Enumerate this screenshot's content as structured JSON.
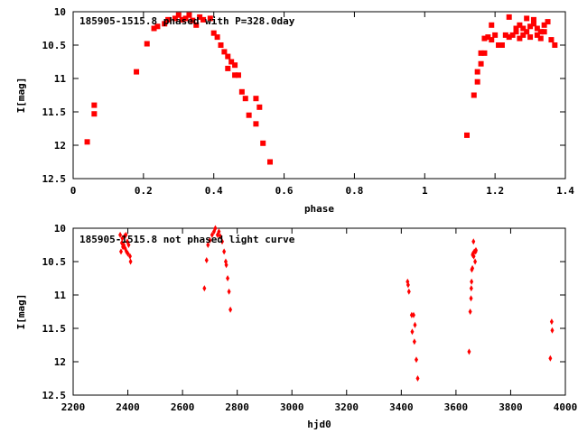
{
  "chart_data": [
    {
      "type": "scatter",
      "title": "185905-1515.8 phased with P=328.0day",
      "xlabel": "phase",
      "ylabel": "I[mag]",
      "xlim": [
        0,
        1.4
      ],
      "ylim": [
        10,
        12.5
      ],
      "y_inverted": true,
      "x_ticks": [
        "0",
        "0.2",
        "0.4",
        "0.6",
        "0.8",
        "1",
        "1.2",
        "1.4"
      ],
      "y_ticks": [
        "10",
        "10.5",
        "11",
        "11.5",
        "12",
        "12.5"
      ],
      "grid": false,
      "marker_color": "#ff0000",
      "series": [
        {
          "points": [
            [
              0.04,
              11.95
            ],
            [
              0.06,
              11.4
            ],
            [
              0.06,
              11.53
            ],
            [
              0.18,
              10.9
            ],
            [
              0.21,
              10.48
            ],
            [
              0.23,
              10.25
            ],
            [
              0.24,
              10.22
            ],
            [
              0.26,
              10.18
            ],
            [
              0.27,
              10.12
            ],
            [
              0.29,
              10.1
            ],
            [
              0.3,
              10.05
            ],
            [
              0.31,
              10.12
            ],
            [
              0.32,
              10.1
            ],
            [
              0.33,
              10.05
            ],
            [
              0.34,
              10.13
            ],
            [
              0.35,
              10.2
            ],
            [
              0.36,
              10.08
            ],
            [
              0.37,
              10.12
            ],
            [
              0.39,
              10.1
            ],
            [
              0.4,
              10.32
            ],
            [
              0.41,
              10.38
            ],
            [
              0.42,
              10.5
            ],
            [
              0.43,
              10.6
            ],
            [
              0.44,
              10.67
            ],
            [
              0.44,
              10.85
            ],
            [
              0.45,
              10.75
            ],
            [
              0.46,
              10.8
            ],
            [
              0.46,
              10.95
            ],
            [
              0.47,
              10.95
            ],
            [
              0.48,
              11.2
            ],
            [
              0.49,
              11.3
            ],
            [
              0.5,
              11.55
            ],
            [
              0.52,
              11.3
            ],
            [
              0.52,
              11.68
            ],
            [
              0.53,
              11.43
            ],
            [
              0.54,
              11.97
            ],
            [
              0.56,
              12.25
            ],
            [
              1.12,
              11.85
            ],
            [
              1.14,
              11.25
            ],
            [
              1.15,
              11.05
            ],
            [
              1.15,
              10.9
            ],
            [
              1.16,
              10.78
            ],
            [
              1.16,
              10.62
            ],
            [
              1.17,
              10.62
            ],
            [
              1.17,
              10.4
            ],
            [
              1.18,
              10.38
            ],
            [
              1.19,
              10.2
            ],
            [
              1.19,
              10.42
            ],
            [
              1.2,
              10.35
            ],
            [
              1.21,
              10.5
            ],
            [
              1.22,
              10.5
            ],
            [
              1.23,
              10.35
            ],
            [
              1.24,
              10.38
            ],
            [
              1.24,
              10.08
            ],
            [
              1.25,
              10.35
            ],
            [
              1.26,
              10.25
            ],
            [
              1.26,
              10.3
            ],
            [
              1.27,
              10.2
            ],
            [
              1.27,
              10.4
            ],
            [
              1.28,
              10.25
            ],
            [
              1.28,
              10.35
            ],
            [
              1.29,
              10.1
            ],
            [
              1.29,
              10.3
            ],
            [
              1.3,
              10.22
            ],
            [
              1.3,
              10.38
            ],
            [
              1.31,
              10.12
            ],
            [
              1.31,
              10.18
            ],
            [
              1.32,
              10.25
            ],
            [
              1.32,
              10.35
            ],
            [
              1.33,
              10.3
            ],
            [
              1.33,
              10.4
            ],
            [
              1.34,
              10.2
            ],
            [
              1.34,
              10.3
            ],
            [
              1.35,
              10.15
            ],
            [
              1.36,
              10.42
            ],
            [
              1.37,
              10.5
            ]
          ]
        }
      ]
    },
    {
      "type": "scatter",
      "title": "185905-1515.8 not phased light curve",
      "xlabel": "hjd0",
      "ylabel": "I[mag]",
      "xlim": [
        2200,
        4000
      ],
      "ylim": [
        10,
        12.5
      ],
      "y_inverted": true,
      "x_ticks": [
        "2200",
        "2400",
        "2600",
        "2800",
        "3000",
        "3200",
        "3400",
        "3600",
        "3800",
        "4000"
      ],
      "y_ticks": [
        "10",
        "10.5",
        "11",
        "11.5",
        "12",
        "12.5"
      ],
      "grid": false,
      "marker_color": "#ff0000",
      "series": [
        {
          "points": [
            [
              2372,
              10.1
            ],
            [
              2375,
              10.35
            ],
            [
              2378,
              10.22
            ],
            [
              2380,
              10.15
            ],
            [
              2382,
              10.28
            ],
            [
              2385,
              10.25
            ],
            [
              2388,
              10.12
            ],
            [
              2390,
              10.3
            ],
            [
              2393,
              10.1
            ],
            [
              2395,
              10.35
            ],
            [
              2398,
              10.2
            ],
            [
              2400,
              10.38
            ],
            [
              2403,
              10.25
            ],
            [
              2408,
              10.42
            ],
            [
              2410,
              10.5
            ],
            [
              2680,
              10.9
            ],
            [
              2688,
              10.48
            ],
            [
              2693,
              10.25
            ],
            [
              2700,
              10.18
            ],
            [
              2708,
              10.1
            ],
            [
              2715,
              10.05
            ],
            [
              2720,
              10.0
            ],
            [
              2728,
              10.1
            ],
            [
              2733,
              10.05
            ],
            [
              2738,
              10.12
            ],
            [
              2745,
              10.2
            ],
            [
              2752,
              10.35
            ],
            [
              2758,
              10.5
            ],
            [
              2760,
              10.55
            ],
            [
              2765,
              10.75
            ],
            [
              2770,
              10.95
            ],
            [
              2775,
              11.22
            ],
            [
              3423,
              10.8
            ],
            [
              3425,
              10.85
            ],
            [
              3428,
              10.95
            ],
            [
              3438,
              11.3
            ],
            [
              3440,
              11.55
            ],
            [
              3445,
              11.3
            ],
            [
              3448,
              11.7
            ],
            [
              3450,
              11.45
            ],
            [
              3455,
              11.97
            ],
            [
              3460,
              12.25
            ],
            [
              3648,
              11.85
            ],
            [
              3652,
              11.25
            ],
            [
              3655,
              11.05
            ],
            [
              3656,
              10.9
            ],
            [
              3657,
              10.8
            ],
            [
              3658,
              10.62
            ],
            [
              3660,
              10.6
            ],
            [
              3661,
              10.4
            ],
            [
              3662,
              10.38
            ],
            [
              3664,
              10.2
            ],
            [
              3665,
              10.42
            ],
            [
              3667,
              10.35
            ],
            [
              3670,
              10.5
            ],
            [
              3672,
              10.35
            ],
            [
              3673,
              10.33
            ],
            [
              3945,
              11.95
            ],
            [
              3950,
              11.4
            ],
            [
              3952,
              11.53
            ]
          ]
        }
      ]
    }
  ]
}
